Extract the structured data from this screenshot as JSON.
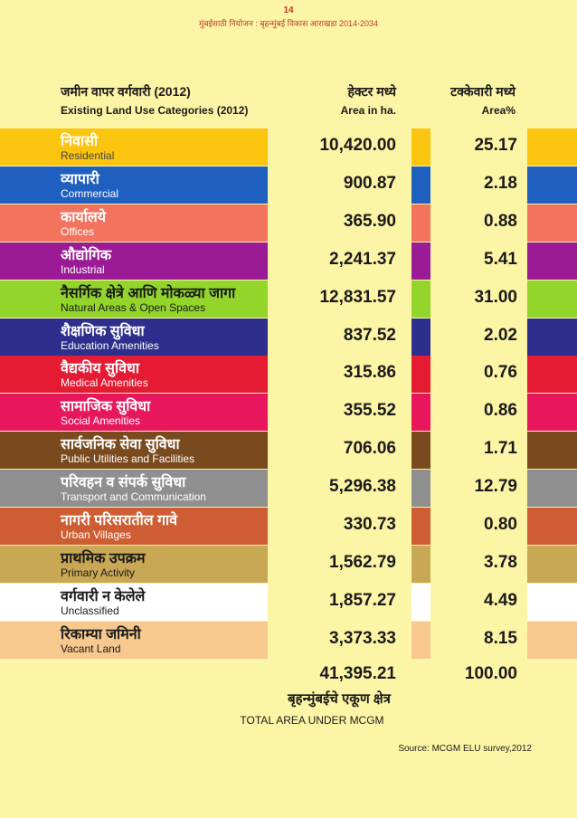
{
  "page": {
    "number": "14",
    "running_head": "मुंबईसाठी नियोजन : बृहन्मुंबई विकास आराखडा 2014-2034"
  },
  "headers": {
    "category_mr": "जमीन वापर वर्गवारी (2012)",
    "category_en": "Existing Land Use Categories (2012)",
    "ha_mr": "हेक्टर मध्ये",
    "ha_en": "Area in ha.",
    "pct_mr": "टक्केवारी मध्ये",
    "pct_en": "Area%"
  },
  "rows": [
    {
      "mr": "निवासी",
      "en": "Residential",
      "ha": "10,420.00",
      "pct": "25.17",
      "color": "#fbc50f",
      "mr_color": "#ffffff",
      "en_color": "#444444"
    },
    {
      "mr": "व्यापारी",
      "en": "Commercial",
      "ha": "900.87",
      "pct": "2.18",
      "color": "#1f5fbf",
      "mr_color": "#ffffff",
      "en_color": "#ffffff"
    },
    {
      "mr": "कार्यालये",
      "en": "Offices",
      "ha": "365.90",
      "pct": "0.88",
      "color": "#f2745e",
      "mr_color": "#ffffff",
      "en_color": "#ffffff"
    },
    {
      "mr": "औद्योगिक",
      "en": "Industrial",
      "ha": "2,241.37",
      "pct": "5.41",
      "color": "#9b1a96",
      "mr_color": "#ffffff",
      "en_color": "#ffffff"
    },
    {
      "mr": "नैसर्गिक क्षेत्रे आणि मोकळ्या जागा",
      "en": "Natural Areas & Open Spaces",
      "ha": "12,831.57",
      "pct": "31.00",
      "color": "#93d52b",
      "mr_color": "#1a1a1a",
      "en_color": "#1a1a1a"
    },
    {
      "mr": "शैक्षणिक सुविधा",
      "en": "Education Amenities",
      "ha": "837.52",
      "pct": "2.02",
      "color": "#2e2f8c",
      "mr_color": "#ffffff",
      "en_color": "#ffffff"
    },
    {
      "mr": "वैद्यकीय सुविधा",
      "en": "Medical Amenities",
      "ha": "315.86",
      "pct": "0.76",
      "color": "#e51b34",
      "mr_color": "#ffffff",
      "en_color": "#ffffff"
    },
    {
      "mr": "सामाजिक सुविधा",
      "en": "Social Amenities",
      "ha": "355.52",
      "pct": "0.86",
      "color": "#e8175d",
      "mr_color": "#ffffff",
      "en_color": "#ffffff"
    },
    {
      "mr": "सार्वजनिक सेवा सुविधा",
      "en": "Public Utilities and Facilities",
      "ha": "706.06",
      "pct": "1.71",
      "color": "#7a4a1f",
      "mr_color": "#ffffff",
      "en_color": "#ffffff"
    },
    {
      "mr": "परिवहन व संपर्क सुविधा",
      "en": "Transport and Communication",
      "ha": "5,296.38",
      "pct": "12.79",
      "color": "#8f8f8f",
      "mr_color": "#ffffff",
      "en_color": "#ffffff"
    },
    {
      "mr": "नागरी परिसरातील गावे",
      "en": "Urban Villages",
      "ha": "330.73",
      "pct": "0.80",
      "color": "#cf5d33",
      "mr_color": "#ffffff",
      "en_color": "#ffffff"
    },
    {
      "mr": "प्राथमिक उपक्रम",
      "en": "Primary Activity",
      "ha": "1,562.79",
      "pct": "3.78",
      "color": "#c9a855",
      "mr_color": "#1a1a1a",
      "en_color": "#1a1a1a"
    },
    {
      "mr": "वर्गवारी न केलेले",
      "en": "Unclassified",
      "ha": "1,857.27",
      "pct": "4.49",
      "color": "#ffffff",
      "mr_color": "#1a1a1a",
      "en_color": "#1a1a1a"
    },
    {
      "mr": "रिकाम्या जमिनी",
      "en": "Vacant Land",
      "ha": "3,373.33",
      "pct": "8.15",
      "color": "#f7c98e",
      "mr_color": "#1a1a1a",
      "en_color": "#1a1a1a"
    }
  ],
  "total": {
    "ha": "41,395.21",
    "pct": "100.00",
    "label_mr": "बृहन्मुंबईचे एकूण क्षेत्र",
    "label_en": "TOTAL AREA UNDER MCGM"
  },
  "source": "Source: MCGM ELU survey,2012"
}
